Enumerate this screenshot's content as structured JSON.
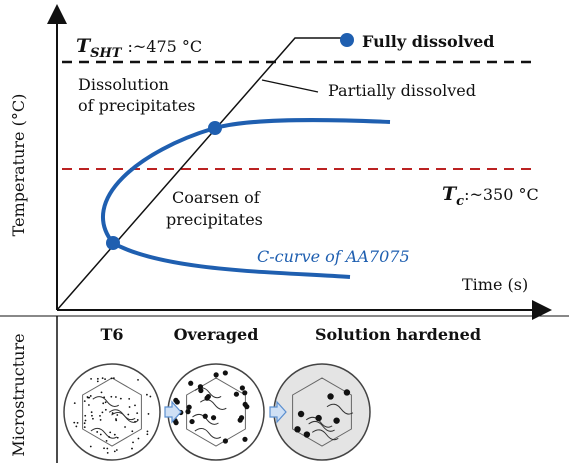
{
  "diagram": {
    "y_axis_label": "Temperature (°C)",
    "x_axis_label": "Time (s)",
    "solution_temp": {
      "symbol": "T",
      "subscript": "SHT",
      "value": ":~475 °C"
    },
    "critical_temp": {
      "symbol": "T",
      "subscript": "c",
      "value": ":~350 °C"
    },
    "fully_dissolved": "Fully dissolved",
    "partially_dissolved": "Partially dissolved",
    "dissolution": [
      "Dissolution",
      "of precipitates"
    ],
    "coarsen": [
      "Coarsen of",
      "precipitates"
    ],
    "c_curve": "C-curve of AA7075",
    "section_label": "Microstructure",
    "states": [
      "T6",
      "Overaged",
      "Solution hardened"
    ]
  }
}
